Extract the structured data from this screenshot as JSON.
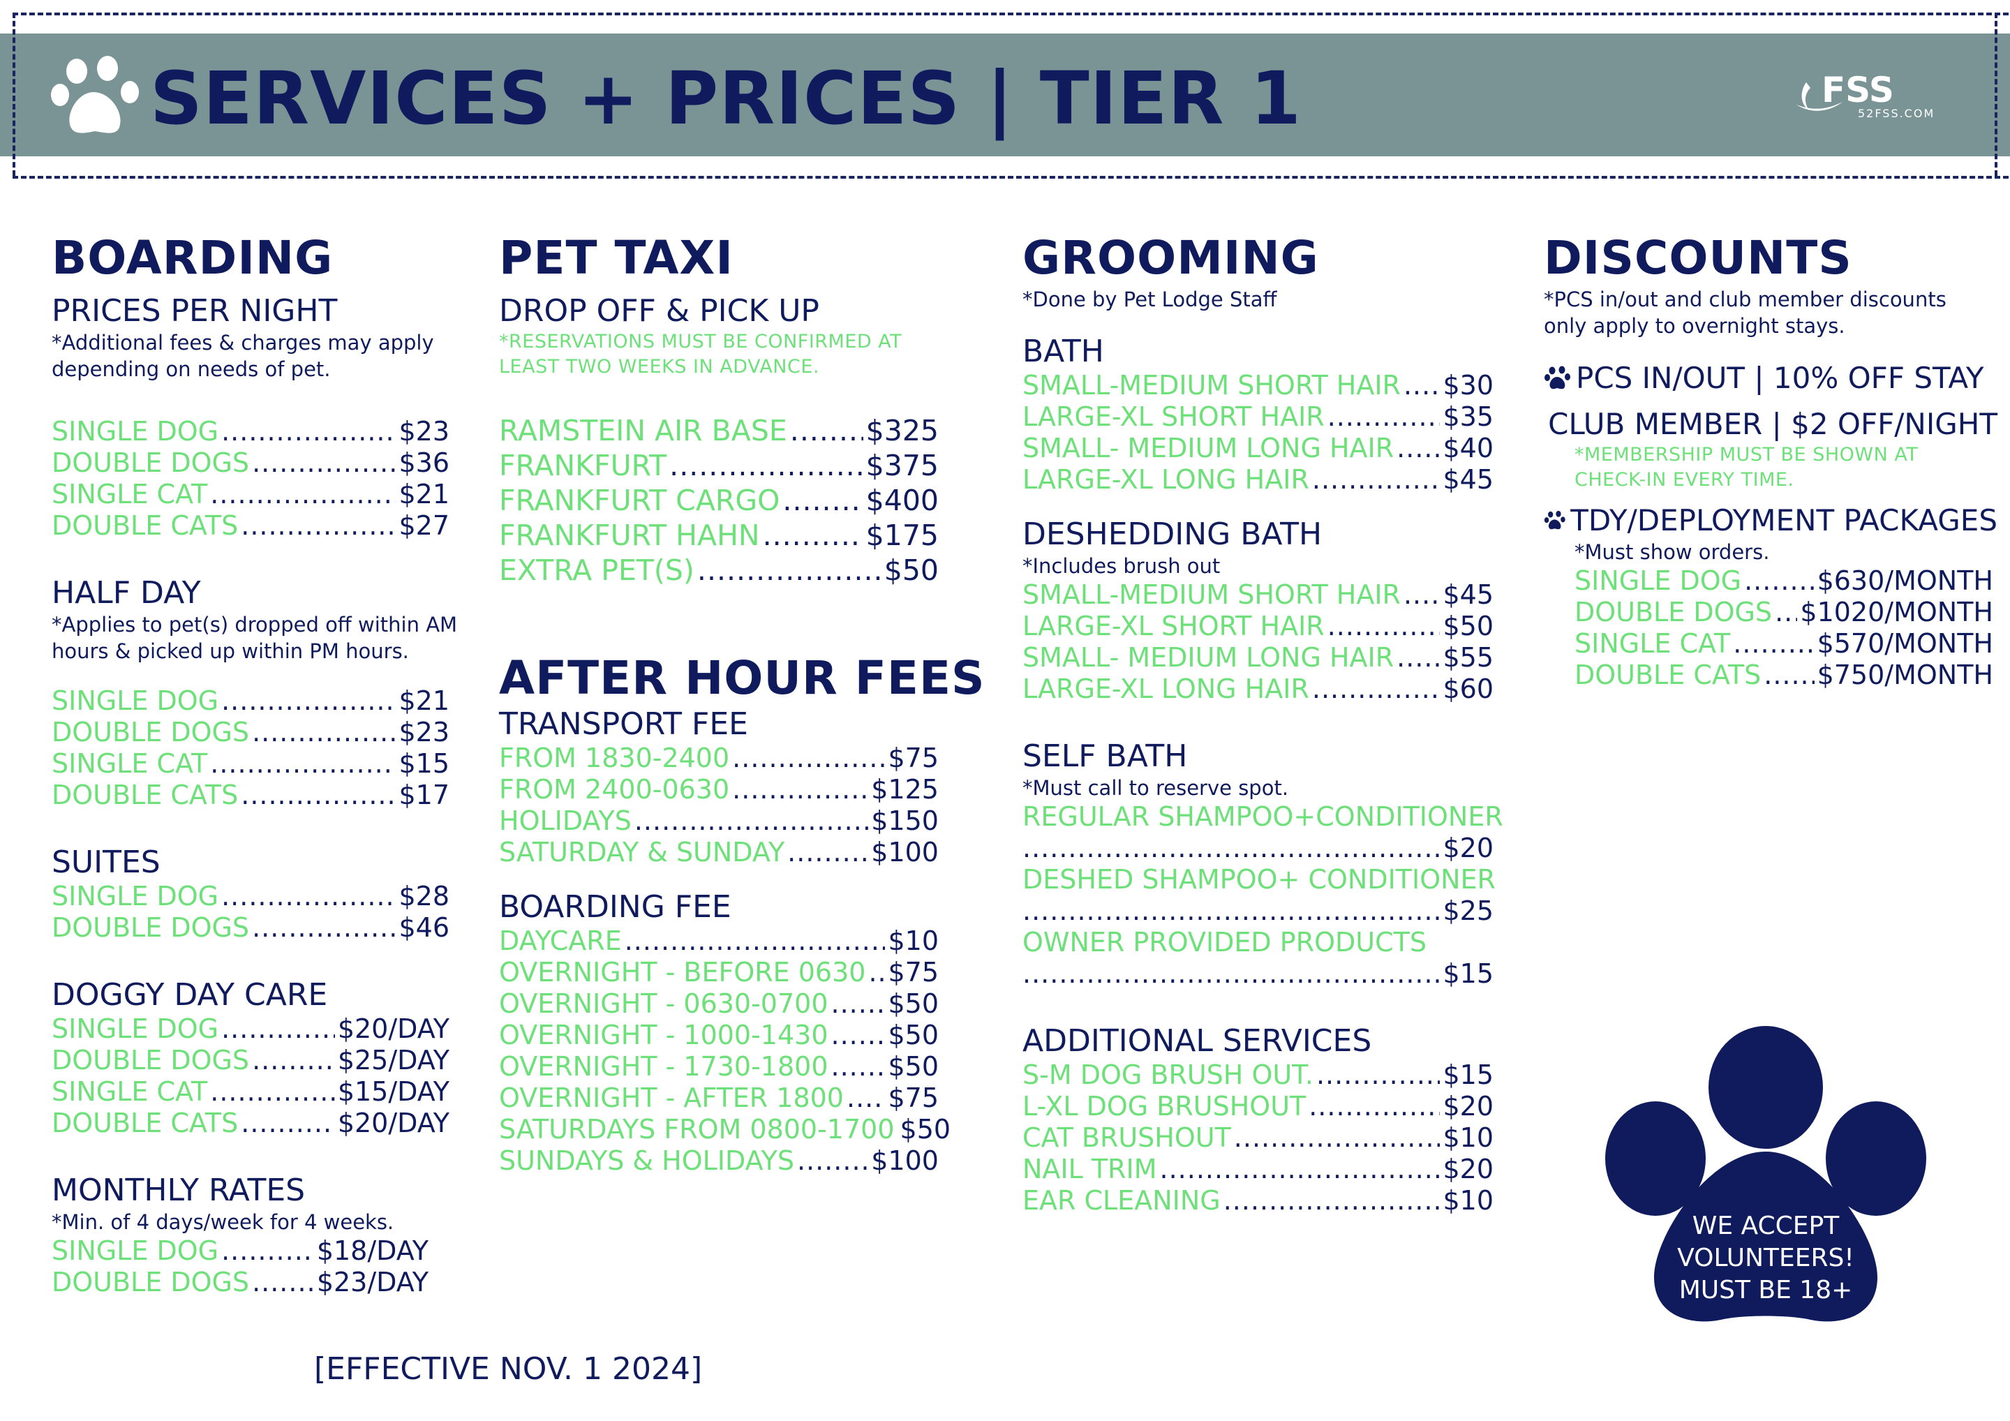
{
  "header": {
    "title": "SERVICES + PRICES | TIER 1",
    "logo_text": "FSS",
    "logo_sub": "52FSS.COM"
  },
  "boarding": {
    "title": "BOARDING",
    "per_night": {
      "label": "PRICES PER NIGHT",
      "note": "*Additional fees & charges may apply depending on needs of pet.",
      "items": [
        {
          "name": "SINGLE DOG",
          "price": "$23"
        },
        {
          "name": "DOUBLE DOGS",
          "price": "$36"
        },
        {
          "name": "SINGLE CAT",
          "price": "$21"
        },
        {
          "name": "DOUBLE CATS",
          "price": "$27"
        }
      ]
    },
    "half_day": {
      "label": "HALF DAY",
      "note": "*Applies to pet(s) dropped off within AM hours & picked up within PM hours.",
      "items": [
        {
          "name": "SINGLE DOG",
          "price": "$21"
        },
        {
          "name": "DOUBLE DOGS",
          "price": "$23"
        },
        {
          "name": "SINGLE CAT",
          "price": "$15"
        },
        {
          "name": "DOUBLE CATS",
          "price": "$17"
        }
      ]
    },
    "suites": {
      "label": "SUITES",
      "items": [
        {
          "name": "SINGLE DOG",
          "price": "$28"
        },
        {
          "name": "DOUBLE DOGS",
          "price": "$46"
        }
      ]
    },
    "doggy_day_care": {
      "label": "DOGGY DAY CARE",
      "items": [
        {
          "name": "SINGLE DOG",
          "price": "$20/DAY"
        },
        {
          "name": "DOUBLE DOGS",
          "price": "$25/DAY"
        },
        {
          "name": "SINGLE CAT",
          "price": "$15/DAY"
        },
        {
          "name": "DOUBLE CATS",
          "price": "$20/DAY"
        }
      ]
    },
    "monthly": {
      "label": "MONTHLY RATES",
      "note": "*Min. of 4 days/week for 4 weeks.",
      "items": [
        {
          "name": "SINGLE DOG",
          "price": "$18/DAY"
        },
        {
          "name": "DOUBLE DOGS",
          "price": "$23/DAY"
        }
      ]
    }
  },
  "pet_taxi": {
    "title": "PET TAXI",
    "label": "DROP OFF & PICK UP",
    "note": "*RESERVATIONS MUST BE CONFIRMED AT LEAST TWO WEEKS IN ADVANCE.",
    "items": [
      {
        "name": "RAMSTEIN AIR BASE",
        "price": "$325"
      },
      {
        "name": "FRANKFURT",
        "price": "$375"
      },
      {
        "name": "FRANKFURT CARGO",
        "price": "$400"
      },
      {
        "name": "FRANKFURT HAHN",
        "price": "$175"
      },
      {
        "name": "EXTRA PET(S)",
        "price": "$50"
      }
    ]
  },
  "after_hours": {
    "title": "AFTER HOUR FEES",
    "transport": {
      "label": "TRANSPORT FEE",
      "items": [
        {
          "name": "FROM 1830-2400",
          "price": "$75"
        },
        {
          "name": "FROM 2400-0630",
          "price": "$125"
        },
        {
          "name": "HOLIDAYS",
          "price": "$150"
        },
        {
          "name": "SATURDAY & SUNDAY",
          "price": "$100"
        }
      ]
    },
    "boarding_fee": {
      "label": "BOARDING FEE",
      "items": [
        {
          "name": "DAYCARE",
          "price": "$10"
        },
        {
          "name": "OVERNIGHT - BEFORE 0630",
          "price": "$75"
        },
        {
          "name": "OVERNIGHT - 0630-0700",
          "price": "$50"
        },
        {
          "name": "OVERNIGHT - 1000-1430",
          "price": "$50"
        },
        {
          "name": "OVERNIGHT - 1730-1800",
          "price": "$50"
        },
        {
          "name": "OVERNIGHT - AFTER 1800",
          "price": "$75"
        },
        {
          "name": "SATURDAYS FROM 0800-1700",
          "price": "$50"
        },
        {
          "name": "SUNDAYS & HOLIDAYS",
          "price": "$100"
        }
      ]
    }
  },
  "grooming": {
    "title": "GROOMING",
    "note": "*Done by Pet Lodge Staff",
    "bath": {
      "label": "BATH",
      "items": [
        {
          "name": "SMALL-MEDIUM SHORT HAIR",
          "price": "$30"
        },
        {
          "name": "LARGE-XL SHORT HAIR",
          "price": "$35"
        },
        {
          "name": "SMALL- MEDIUM LONG HAIR",
          "price": "$40"
        },
        {
          "name": "LARGE-XL LONG HAIR",
          "price": "$45"
        }
      ]
    },
    "deshedding": {
      "label": "DESHEDDING BATH",
      "note": "*Includes brush out",
      "items": [
        {
          "name": "SMALL-MEDIUM SHORT HAIR",
          "price": "$45"
        },
        {
          "name": "LARGE-XL SHORT HAIR",
          "price": "$50"
        },
        {
          "name": "SMALL- MEDIUM LONG HAIR",
          "price": "$55"
        },
        {
          "name": "LARGE-XL LONG HAIR",
          "price": "$60"
        }
      ]
    },
    "self_bath": {
      "label": "SELF BATH",
      "note": "*Must call to reserve spot.",
      "items": [
        {
          "name": "REGULAR SHAMPOO+CONDITIONER",
          "price": "$20"
        },
        {
          "name": "DESHED SHAMPOO+ CONDITIONER",
          "price": "$25"
        },
        {
          "name": "OWNER PROVIDED PRODUCTS",
          "price": "$15"
        }
      ]
    },
    "additional": {
      "label": "ADDITIONAL SERVICES",
      "items": [
        {
          "name": "S-M DOG BRUSH OUT.",
          "price": "$15"
        },
        {
          "name": "L-XL DOG BRUSHOUT",
          "price": "$20"
        },
        {
          "name": "CAT BRUSHOUT",
          "price": "$10"
        },
        {
          "name": "NAIL TRIM",
          "price": "$20"
        },
        {
          "name": "EAR CLEANING",
          "price": "$10"
        }
      ]
    }
  },
  "discounts": {
    "title": "DISCOUNTS",
    "note": "*PCS in/out and club member discounts only apply to overnight stays.",
    "pcs": "PCS IN/OUT | 10% OFF STAY",
    "club": "CLUB MEMBER | $2 OFF/NIGHT",
    "club_note": "*MEMBERSHIP MUST BE SHOWN AT CHECK-IN EVERY TIME.",
    "tdy": "TDY/DEPLOYMENT PACKAGES",
    "tdy_note": "*Must show orders.",
    "items": [
      {
        "name": "SINGLE DOG",
        "price": "$630/MONTH"
      },
      {
        "name": "DOUBLE DOGS",
        "price": "$1020/MONTH"
      },
      {
        "name": "SINGLE CAT",
        "price": "$570/MONTH"
      },
      {
        "name": "DOUBLE CATS",
        "price": "$750/MONTH"
      }
    ]
  },
  "volunteer": {
    "line1": "WE ACCEPT",
    "line2": "VOLUNTEERS!",
    "line3": "MUST BE 18+"
  },
  "effective": "[EFFECTIVE NOV. 1 2024]",
  "colors": {
    "navy": "#0f1b5c",
    "green": "#6ee07a",
    "banner": "#7a9395"
  }
}
